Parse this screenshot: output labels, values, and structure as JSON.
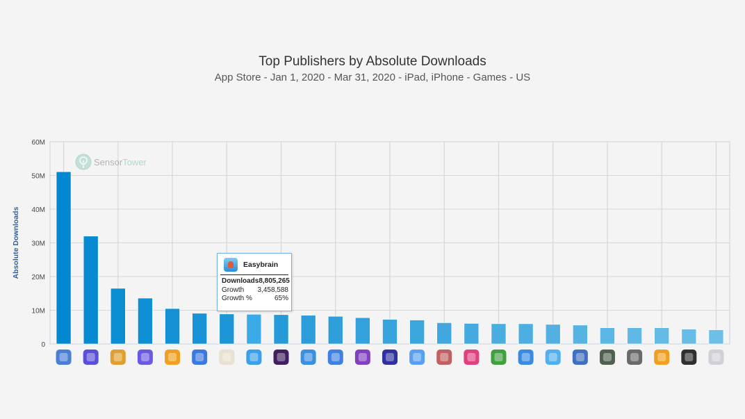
{
  "chart_data": {
    "type": "bar",
    "title": "Top Publishers by Absolute Downloads",
    "subtitle": "App Store - Jan 1, 2020 - Mar 31, 2020 - iPad, iPhone - Games - US",
    "xlabel": "",
    "ylabel": "Absolute Downloads",
    "ylim": [
      0,
      60000000
    ],
    "yticks": [
      "0",
      "10M",
      "20M",
      "30M",
      "40M",
      "50M",
      "60M"
    ],
    "grid": true,
    "watermark": "SensorTower",
    "categories_note": "publisher app icons",
    "values": [
      51100000,
      32000000,
      16500000,
      13600000,
      10500000,
      9100000,
      8900000,
      8805265,
      8700000,
      8500000,
      8200000,
      7800000,
      7300000,
      7100000,
      6300000,
      6100000,
      6000000,
      6000000,
      5800000,
      5600000,
      4800000,
      4800000,
      4800000,
      4400000,
      4200000
    ],
    "highlighted_index": 7,
    "icon_colors": [
      "#4a7fd8",
      "#5a4fd8",
      "#e0a030",
      "#6a5ae0",
      "#f0a020",
      "#3a7ae0",
      "#e8e0d0",
      "#3aa0e8",
      "#402060",
      "#3a90e0",
      "#4080e0",
      "#8040c0",
      "#3030a0",
      "#5aa0f0",
      "#c06060",
      "#e04080",
      "#40a040",
      "#3a8ae0",
      "#50b0f0",
      "#4070c0",
      "#506050",
      "#6a6a6a",
      "#f0a020",
      "#303030",
      "#d0d0d8"
    ],
    "tooltip": {
      "name": "Easybrain",
      "rows": [
        {
          "label": "Downloads",
          "value": "8,805,265"
        },
        {
          "label": "Growth",
          "value": "3,458,588"
        },
        {
          "label": "Growth %",
          "value": "65%"
        }
      ]
    },
    "colors": {
      "bar_dark": "#0288d1",
      "bar_light": "#6cbfe8",
      "highlight": "#3aaae8",
      "grid": "#d6d6d6",
      "axis_label": "#2f5f9a"
    }
  }
}
